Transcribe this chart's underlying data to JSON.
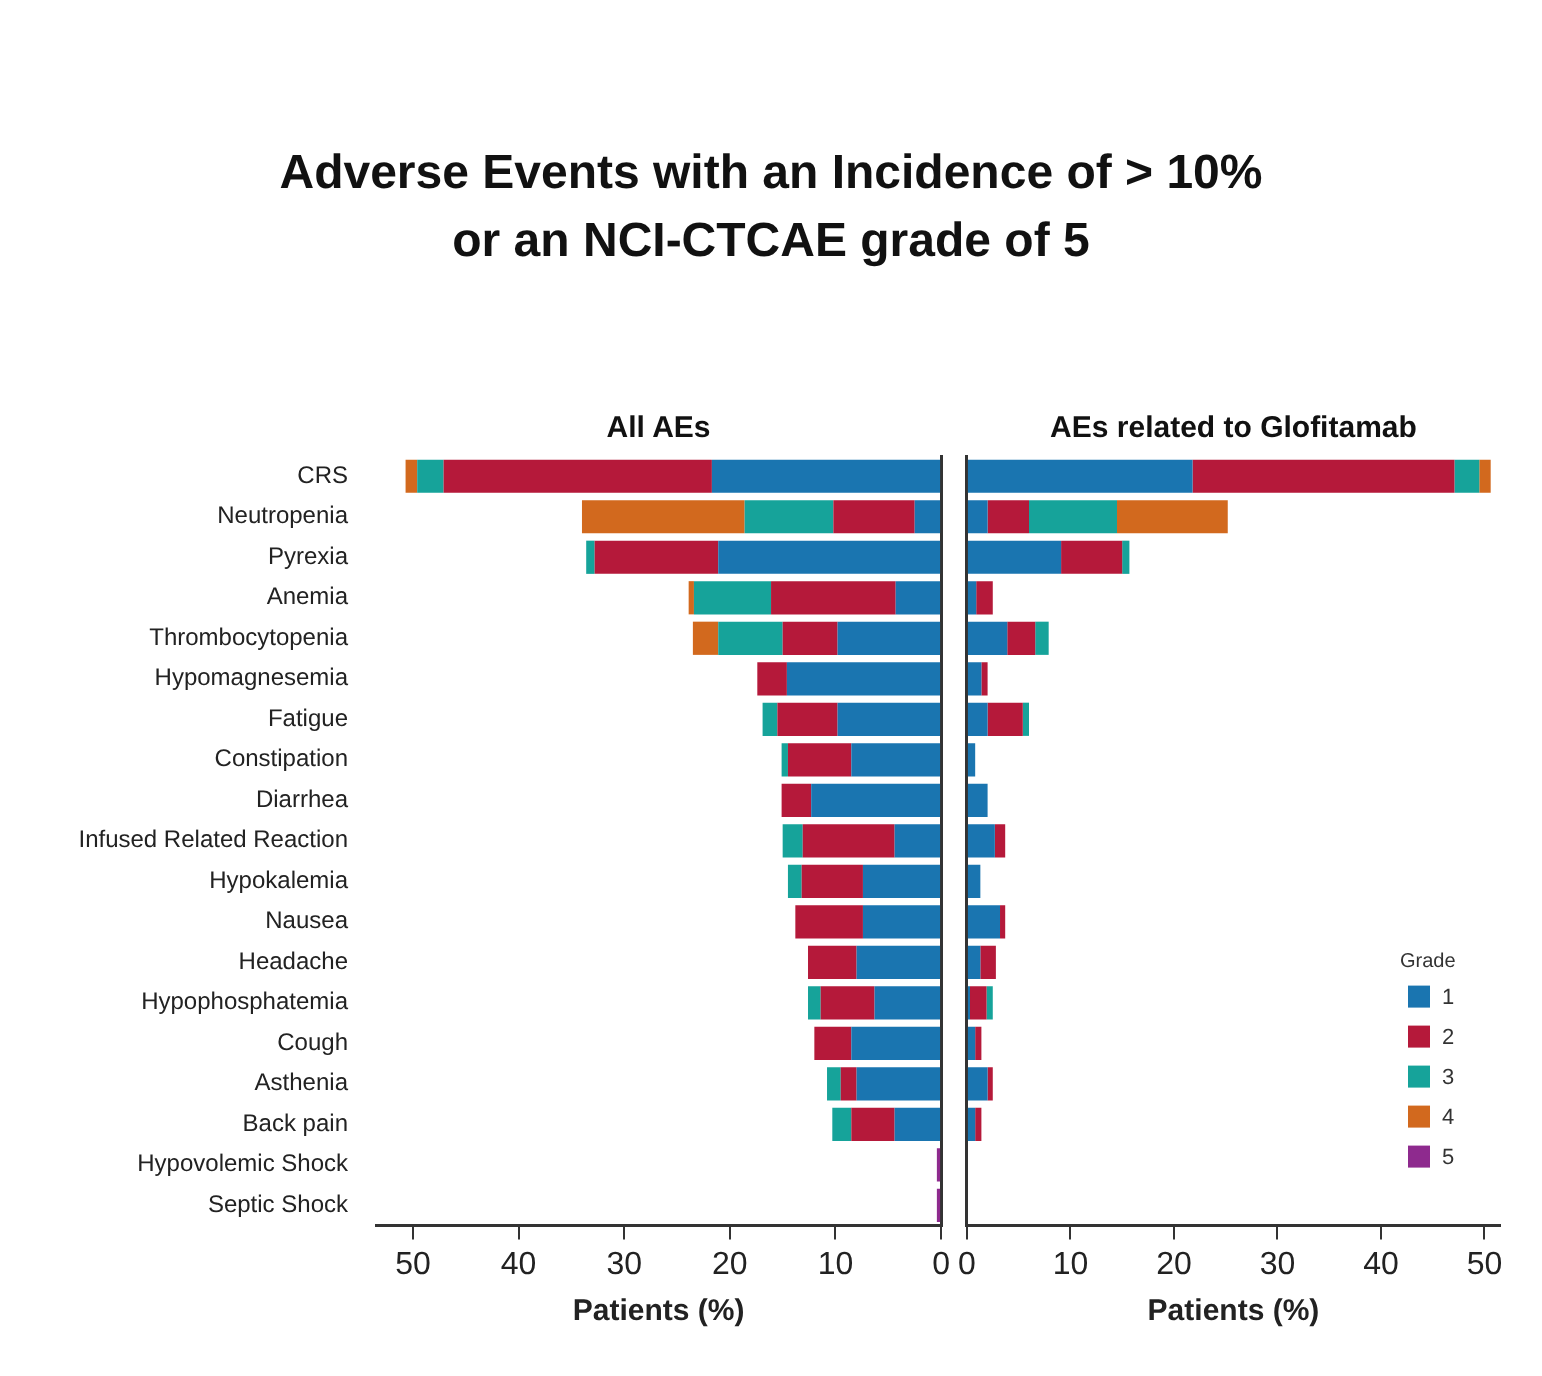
{
  "chart_data": [
    {
      "type": "bar",
      "orientation": "horizontal",
      "stacked": true,
      "title": "Adverse Events with an Incidence of > 10% or an NCI-CTCAE grade of 5",
      "subtitle": "All AEs",
      "xlabel": "Patients (%)",
      "categories": [
        "CRS",
        "Neutropenia",
        "Pyrexia",
        "Anemia",
        "Thrombocytopenia",
        "Hypomagnesemia",
        "Fatigue",
        "Constipation",
        "Diarrhea",
        "Infused Related Reaction",
        "Hypokalemia",
        "Nausea",
        "Headache",
        "Hypophosphatemia",
        "Cough",
        "Asthenia",
        "Back pain",
        "Hypovolemic Shock",
        "Septic Shock"
      ],
      "series": [
        {
          "color": "#1a75b0",
          "values": [
            21.7,
            2.5,
            21.1,
            4.3,
            9.8,
            14.6,
            9.8,
            8.5,
            12.3,
            4.4,
            7.4,
            7.4,
            8.0,
            6.3,
            8.5,
            8.0,
            4.4,
            0,
            0
          ]
        },
        {
          "color": "#b5193a",
          "values": [
            25.4,
            7.7,
            11.7,
            11.8,
            5.2,
            2.8,
            5.7,
            6.0,
            2.8,
            8.7,
            5.8,
            6.4,
            4.6,
            5.1,
            3.5,
            1.5,
            4.1,
            0,
            0
          ]
        },
        {
          "color": "#16a39a",
          "values": [
            2.5,
            8.4,
            0.8,
            7.3,
            6.1,
            0,
            1.4,
            0.6,
            0,
            1.9,
            1.3,
            0,
            0,
            1.2,
            0,
            1.3,
            1.8,
            0,
            0
          ]
        },
        {
          "color": "#d2691e",
          "values": [
            1.1,
            15.4,
            0,
            0.5,
            2.4,
            0,
            0,
            0,
            0,
            0,
            0,
            0,
            0,
            0,
            0,
            0,
            0,
            0,
            0
          ]
        },
        {
          "color": "#8e2a8e",
          "values": [
            0,
            0,
            0,
            0,
            0,
            0,
            0,
            0,
            0,
            0,
            0,
            0,
            0,
            0,
            0,
            0,
            0,
            0.4,
            0.4
          ]
        }
      ],
      "xlim": [
        53.5,
        0
      ],
      "xticks": [
        50,
        40,
        30,
        20,
        10,
        0
      ],
      "grid": false,
      "legend": false
    },
    {
      "type": "bar",
      "orientation": "horizontal",
      "stacked": true,
      "subtitle": "AEs related to Glofitamab",
      "xlabel": "Patients (%)",
      "legend_title": "Grade",
      "series": [
        {
          "name": "1",
          "color": "#1a75b0",
          "values": [
            21.8,
            2.0,
            9.1,
            0.9,
            3.9,
            1.4,
            2.0,
            0.8,
            2.0,
            2.7,
            1.3,
            3.2,
            1.3,
            0.3,
            0.8,
            2.0,
            0.8,
            0,
            0
          ]
        },
        {
          "name": "2",
          "color": "#b5193a",
          "values": [
            25.3,
            4.0,
            5.9,
            1.6,
            2.7,
            0.6,
            3.4,
            0,
            0,
            1.0,
            0,
            0.5,
            1.5,
            1.6,
            0.6,
            0.5,
            0.6,
            0,
            0
          ]
        },
        {
          "name": "3",
          "color": "#16a39a",
          "values": [
            2.4,
            8.5,
            0.7,
            0,
            1.3,
            0,
            0.6,
            0,
            0,
            0,
            0,
            0,
            0,
            0.6,
            0,
            0,
            0,
            0,
            0
          ]
        },
        {
          "name": "4",
          "color": "#d2691e",
          "values": [
            1.1,
            10.7,
            0,
            0,
            0,
            0,
            0,
            0,
            0,
            0,
            0,
            0,
            0,
            0,
            0,
            0,
            0,
            0,
            0
          ]
        },
        {
          "name": "5",
          "color": "#8e2a8e",
          "values": [
            0,
            0,
            0,
            0,
            0,
            0,
            0,
            0,
            0,
            0,
            0,
            0,
            0,
            0,
            0,
            0,
            0,
            0,
            0
          ]
        }
      ],
      "xlim": [
        0,
        51.5
      ],
      "xticks": [
        0,
        10,
        20,
        30,
        40,
        50
      ],
      "grid": false,
      "legend": "bottom right",
      "tick_labels": "x"
    }
  ]
}
